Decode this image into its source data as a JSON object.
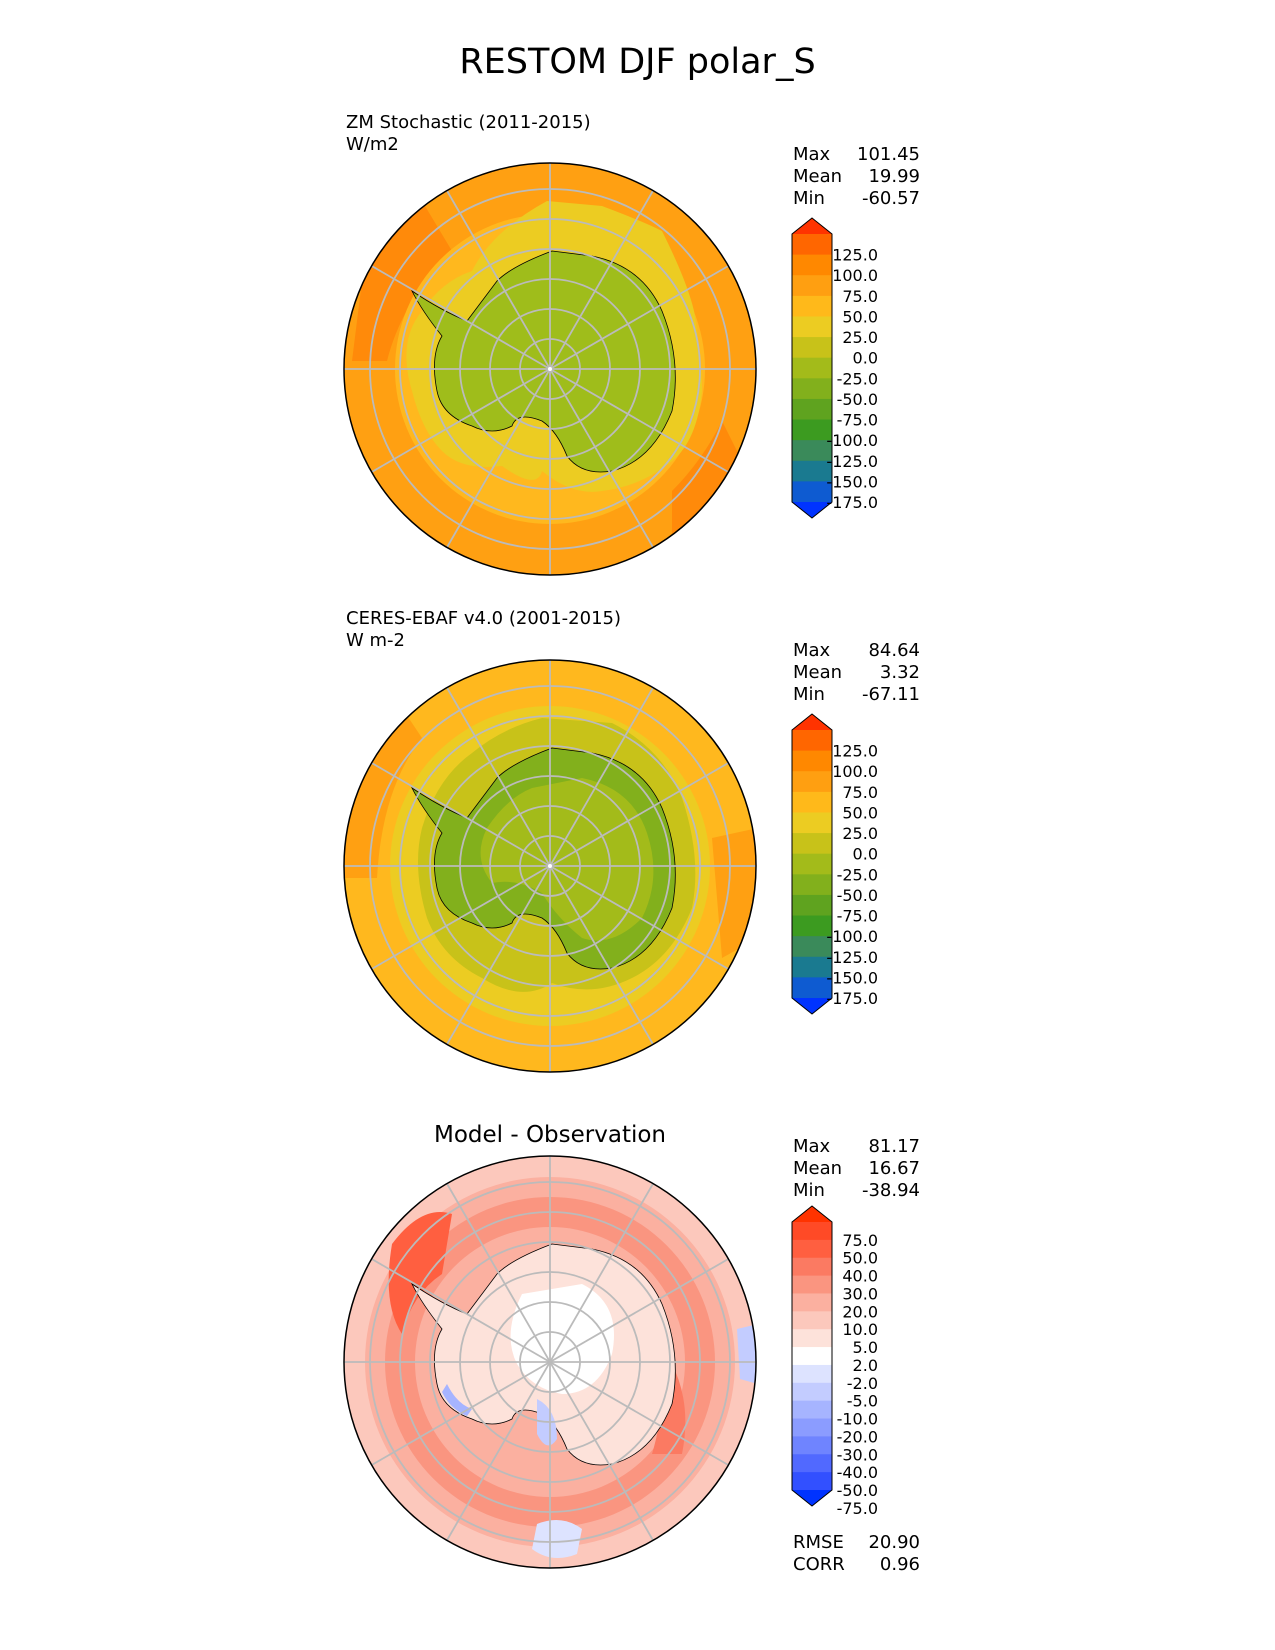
{
  "figure": {
    "title": "RESTOM DJF polar_S"
  },
  "panels": [
    {
      "title_line1": "ZM Stochastic (2011-2015)",
      "title_line2": "W/m2",
      "stats": {
        "max_label": "Max",
        "max": "101.45",
        "mean_label": "Mean",
        "mean": "19.99",
        "min_label": "Min",
        "min": "-60.57"
      },
      "colorbar_key": "cb_main"
    },
    {
      "title_line1": "CERES-EBAF v4.0 (2001-2015)",
      "title_line2": "W m-2",
      "stats": {
        "max_label": "Max",
        "max": "84.64",
        "mean_label": "Mean",
        "mean": "3.32",
        "min_label": "Min",
        "min": "-67.11"
      },
      "colorbar_key": "cb_main"
    },
    {
      "title": "Model - Observation",
      "stats": {
        "max_label": "Max",
        "max": "81.17",
        "mean_label": "Mean",
        "mean": "16.67",
        "min_label": "Min",
        "min": "-38.94"
      },
      "metrics": {
        "rmse_label": "RMSE",
        "rmse": "20.90",
        "corr_label": "CORR",
        "corr": "0.96"
      },
      "colorbar_key": "cb_diff"
    }
  ],
  "colorbars": {
    "cb_main": {
      "ticks": [
        "125.0",
        "100.0",
        "75.0",
        "50.0",
        "25.0",
        "0.0",
        "-25.0",
        "-50.0",
        "-75.0",
        "-100.0",
        "-125.0",
        "-150.0",
        "-175.0"
      ],
      "colors": [
        "#ff3300",
        "#ff6600",
        "#ff8800",
        "#ff9f11",
        "#ffb91a",
        "#eccc22",
        "#c8c219",
        "#a3bb1a",
        "#82b01c",
        "#5fa31f",
        "#3c9b20",
        "#3a8a5a",
        "#1a7a90",
        "#0e5bd1",
        "#0033ff"
      ]
    },
    "cb_diff": {
      "ticks": [
        "75.0",
        "50.0",
        "40.0",
        "30.0",
        "20.0",
        "10.0",
        "5.0",
        "2.0",
        "-2.0",
        "-5.0",
        "-10.0",
        "-20.0",
        "-30.0",
        "-40.0",
        "-50.0",
        "-75.0"
      ],
      "colors": [
        "#ff3300",
        "#ff4a26",
        "#ff5f40",
        "#fb7a62",
        "#fa9580",
        "#fbb0a0",
        "#fcc8bc",
        "#fde2da",
        "#ffffff",
        "#dde3ff",
        "#c3ccff",
        "#a6b4ff",
        "#8b9cff",
        "#6f84ff",
        "#5169ff",
        "#3250ff",
        "#0033ff"
      ]
    }
  },
  "chart_data": [
    {
      "type": "heatmap",
      "projection": "south-polar-stereographic",
      "title": "ZM Stochastic (2011-2015)",
      "units": "W/m2",
      "stats": {
        "max": 101.45,
        "mean": 19.99,
        "min": -60.57
      },
      "colorbar_levels": [
        -175,
        -150,
        -125,
        -100,
        -75,
        -50,
        -25,
        0,
        25,
        50,
        75,
        100,
        125
      ],
      "field_description_values": {
        "antarctic_continent": -35,
        "sea_ice_zone": 20,
        "southern_ocean": 55,
        "outer_ocean_max_region": 85
      }
    },
    {
      "type": "heatmap",
      "projection": "south-polar-stereographic",
      "title": "CERES-EBAF v4.0 (2001-2015)",
      "units": "W m-2",
      "stats": {
        "max": 84.64,
        "mean": 3.32,
        "min": -67.11
      },
      "colorbar_levels": [
        -175,
        -150,
        -125,
        -100,
        -75,
        -50,
        -25,
        0,
        25,
        50,
        75,
        100,
        125
      ],
      "field_description_values": {
        "antarctic_continent": -45,
        "sea_ice_zone": 5,
        "southern_ocean": 35,
        "outer_ocean_max_region": 60
      }
    },
    {
      "type": "heatmap",
      "projection": "south-polar-stereographic",
      "title": "Model - Observation",
      "stats": {
        "max": 81.17,
        "mean": 16.67,
        "min": -38.94,
        "rmse": 20.9,
        "corr": 0.96
      },
      "colorbar_levels": [
        -75,
        -50,
        -40,
        -30,
        -20,
        -10,
        -5,
        -2,
        2,
        5,
        10,
        20,
        30,
        40,
        50,
        75
      ],
      "field_description_values": {
        "antarctic_interior": 3,
        "southern_ocean_ring": 30,
        "weddell_sea_max": 50,
        "coastal_negative_patches": -8
      }
    }
  ]
}
